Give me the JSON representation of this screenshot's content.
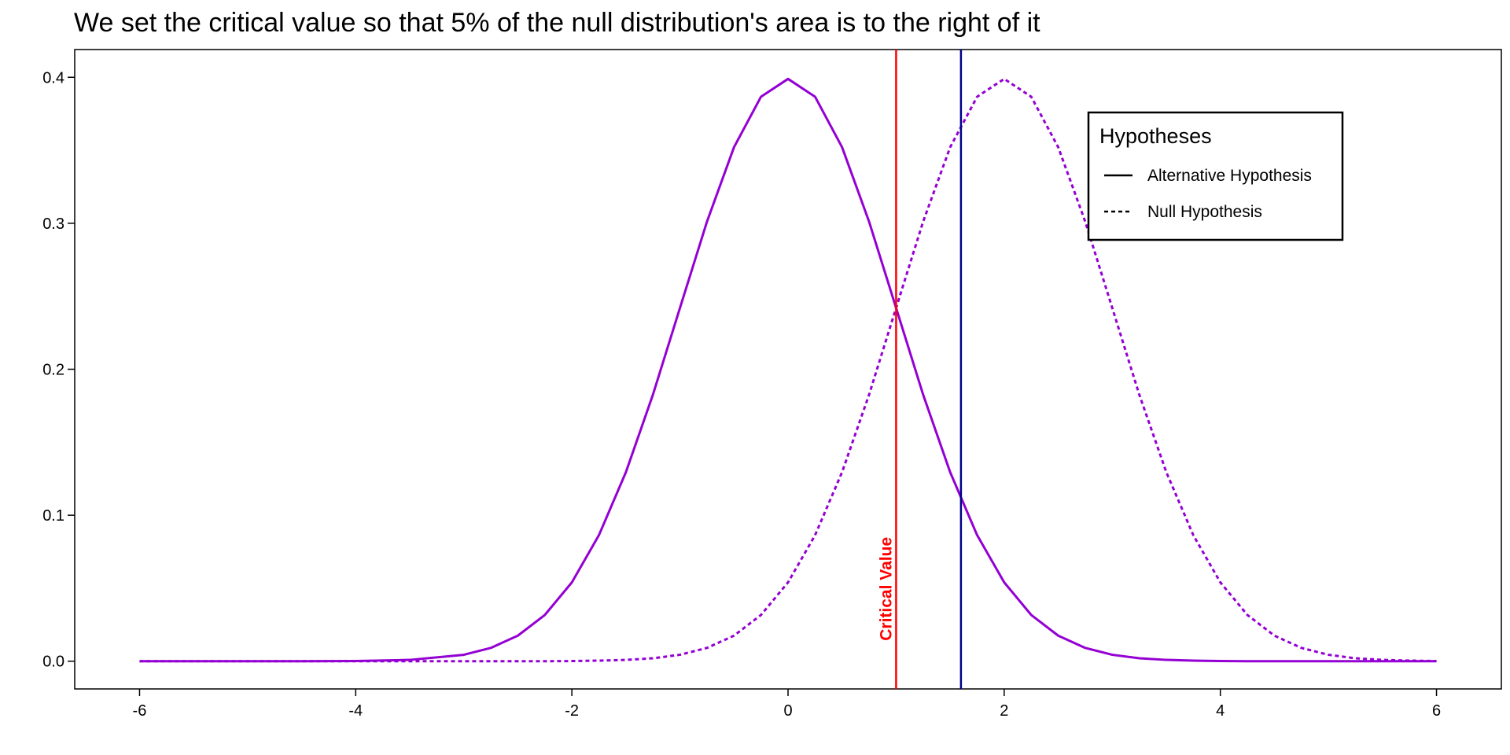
{
  "chart_data": {
    "type": "line",
    "title": "We set the critical value so that 5% of the null distribution's area is to the right of it",
    "xlabel": "",
    "ylabel": "",
    "xlim": [
      -6.6,
      6.6
    ],
    "ylim": [
      -0.019,
      0.419
    ],
    "x_ticks": [
      -6,
      -4,
      -2,
      0,
      2,
      4,
      6
    ],
    "x_tick_labels": [
      "-6",
      "-4",
      "-2",
      "0",
      "2",
      "4",
      "6"
    ],
    "y_ticks": [
      0.0,
      0.1,
      0.2,
      0.3,
      0.4
    ],
    "y_tick_labels": [
      "0.0",
      "0.1",
      "0.2",
      "0.3",
      "0.4"
    ],
    "grid": false,
    "x": [
      -6,
      -5.5,
      -5,
      -4.5,
      -4,
      -3.5,
      -3,
      -2.75,
      -2.5,
      -2.25,
      -2,
      -1.75,
      -1.5,
      -1.25,
      -1,
      -0.75,
      -0.5,
      -0.25,
      0,
      0.25,
      0.5,
      0.75,
      1,
      1.25,
      1.5,
      1.75,
      2,
      2.25,
      2.5,
      2.75,
      3,
      3.25,
      3.5,
      3.75,
      4,
      4.25,
      4.5,
      4.75,
      5,
      5.25,
      5.5,
      5.75,
      6
    ],
    "series": [
      {
        "name": "Alternative Hypothesis",
        "line_style": "solid",
        "color": "#9400D3",
        "values": [
          0.0,
          0.0,
          0.0,
          0.0,
          0.0001,
          0.0009,
          0.0044,
          0.0091,
          0.0175,
          0.0317,
          0.054,
          0.0863,
          0.1295,
          0.1826,
          0.242,
          0.3011,
          0.3521,
          0.3867,
          0.3989,
          0.3867,
          0.3521,
          0.3011,
          0.242,
          0.1826,
          0.1295,
          0.0863,
          0.054,
          0.0317,
          0.0175,
          0.0091,
          0.0044,
          0.002,
          0.0009,
          0.0004,
          0.0001,
          0.0,
          0.0,
          0.0,
          0.0,
          0.0,
          0.0,
          0.0,
          0.0
        ]
      },
      {
        "name": "Null Hypothesis",
        "line_style": "dashed",
        "color": "#9400D3",
        "values": [
          0.0,
          0.0,
          0.0,
          0.0,
          0.0,
          0.0,
          0.0,
          0.0,
          0.0,
          0.0,
          0.0001,
          0.0004,
          0.0009,
          0.002,
          0.0044,
          0.0091,
          0.0175,
          0.0317,
          0.054,
          0.0863,
          0.1295,
          0.1826,
          0.242,
          0.3011,
          0.3521,
          0.3867,
          0.3989,
          0.3867,
          0.3521,
          0.3011,
          0.242,
          0.1826,
          0.1295,
          0.0863,
          0.054,
          0.0317,
          0.0175,
          0.0091,
          0.0044,
          0.002,
          0.0009,
          0.0004,
          0.0001
        ]
      }
    ],
    "vlines": [
      {
        "x": 1.0,
        "color": "#FF0000",
        "label": "Critical Value"
      },
      {
        "x": 1.6,
        "color": "#00008B",
        "label": ""
      }
    ],
    "legend": {
      "title": "Hypotheses",
      "placement": "top-right",
      "entries": [
        {
          "label": "Alternative Hypothesis",
          "line_style": "solid"
        },
        {
          "label": "Null Hypothesis",
          "line_style": "dashed"
        }
      ]
    }
  }
}
